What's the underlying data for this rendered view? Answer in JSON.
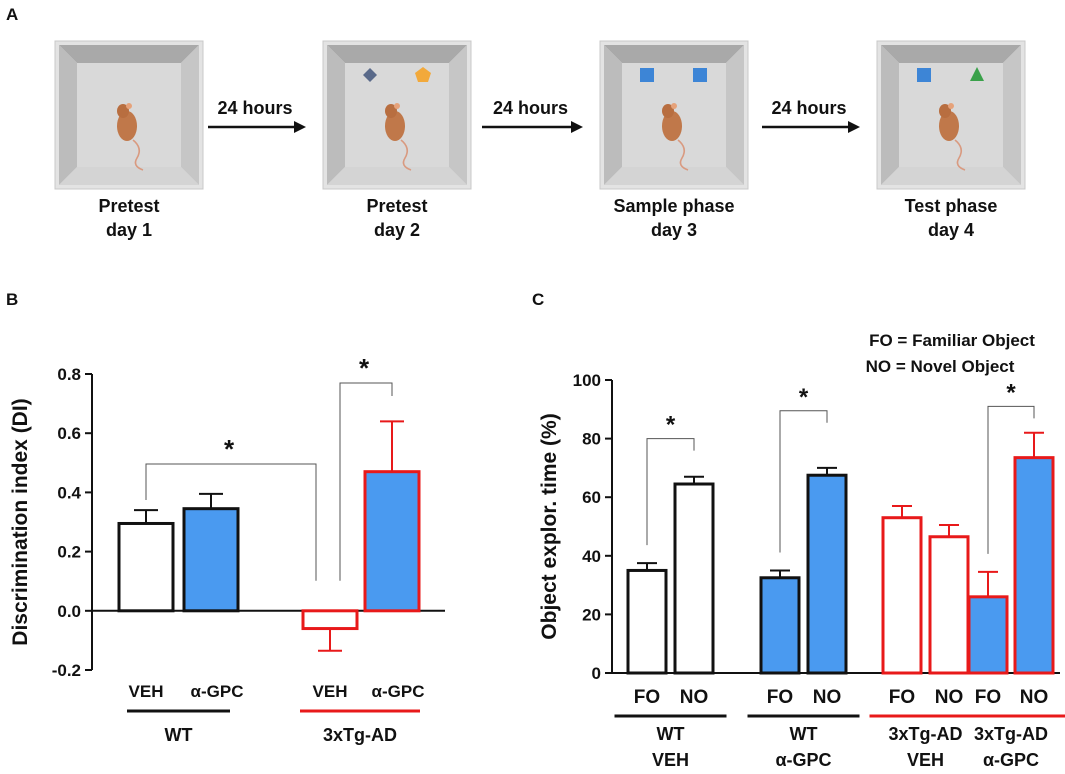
{
  "panelA": {
    "label": "A",
    "stages": [
      {
        "line1": "Pretest",
        "line2": "day 1",
        "objects": []
      },
      {
        "line1": "Pretest",
        "line2": "day 2",
        "objects": [
          "diamond-gray",
          "pentagon-orange"
        ]
      },
      {
        "line1": "Sample phase",
        "line2": "day 3",
        "objects": [
          "square-blue",
          "square-blue"
        ]
      },
      {
        "line1": "Test phase",
        "line2": "day 4",
        "objects": [
          "square-blue",
          "triangle-green"
        ]
      }
    ],
    "arrows": [
      "24 hours",
      "24 hours",
      "24 hours"
    ],
    "colors": {
      "arena_outer": "#d6d6d6",
      "arena_wall": "#bdbdbd",
      "arena_floor": "#d9d9d9",
      "mouse": "#c0784a",
      "blue": "#3d85d6",
      "orange": "#f2a93b",
      "green": "#3aa14a",
      "gray": "#5a6a8a"
    }
  },
  "chart_data": [
    {
      "panel": "B",
      "type": "bar",
      "ylabel": "Discrimination index (DI)",
      "ylim": [
        -0.2,
        0.8
      ],
      "yticks": [
        -0.2,
        0.0,
        0.2,
        0.4,
        0.6,
        0.8
      ],
      "ytick_labels": [
        "-0.2",
        "0.0",
        "0.2",
        "0.4",
        "0.6",
        "0.8"
      ],
      "bars": [
        {
          "group": "WT",
          "label": "VEH",
          "value": 0.295,
          "err": 0.045,
          "style": "white-black"
        },
        {
          "group": "WT",
          "label": "α-GPC",
          "value": 0.345,
          "err": 0.05,
          "style": "blue-black"
        },
        {
          "group": "3xTg-AD",
          "label": "VEH",
          "value": -0.06,
          "err": 0.075,
          "style": "white-red"
        },
        {
          "group": "3xTg-AD",
          "label": "α-GPC",
          "value": 0.47,
          "err": 0.17,
          "style": "blue-red"
        }
      ],
      "groups": [
        {
          "name": "WT",
          "color": "#111111"
        },
        {
          "name": "3xTg-AD",
          "color": "#e8191a"
        }
      ],
      "significance": [
        {
          "from": 0,
          "to": 2,
          "label": "*"
        },
        {
          "from": 2,
          "to": 3,
          "label": "*"
        }
      ]
    },
    {
      "panel": "C",
      "type": "bar",
      "ylabel": "Object explor. time (%)",
      "ylim": [
        0,
        100
      ],
      "yticks": [
        0,
        20,
        40,
        60,
        80,
        100
      ],
      "ytick_labels": [
        "0",
        "20",
        "40",
        "60",
        "80",
        "100"
      ],
      "legend": [
        "FO = Familiar Object",
        "NO = Novel Object"
      ],
      "groups": [
        {
          "line1": "WT",
          "line2": "VEH",
          "color1": "#111111",
          "color2": "#111111",
          "bars": [
            {
              "label": "FO",
              "value": 35,
              "err": 2.5,
              "style": "white-black"
            },
            {
              "label": "NO",
              "value": 64.5,
              "err": 2.5,
              "style": "white-black"
            }
          ],
          "sig": "*"
        },
        {
          "line1": "WT",
          "line2": "α-GPC",
          "color1": "#111111",
          "color2": "#111111",
          "bars": [
            {
              "label": "FO",
              "value": 32.5,
              "err": 2.5,
              "style": "blue-black"
            },
            {
              "label": "NO",
              "value": 67.5,
              "err": 2.5,
              "style": "blue-black"
            }
          ],
          "sig": "*"
        },
        {
          "line1": "3xTg-AD",
          "line2": "VEH",
          "color1": "#e8191a",
          "color2": "#111111",
          "bars": [
            {
              "label": "FO",
              "value": 53,
              "err": 4,
              "style": "white-red"
            },
            {
              "label": "NO",
              "value": 46.5,
              "err": 4,
              "style": "white-red"
            }
          ],
          "sig": ""
        },
        {
          "line1": "3xTg-AD",
          "line2": "α-GPC",
          "color1": "#e8191a",
          "color2": "#111111",
          "bars": [
            {
              "label": "FO",
              "value": 26,
              "err": 8.5,
              "style": "blue-red"
            },
            {
              "label": "NO",
              "value": 73.5,
              "err": 8.5,
              "style": "blue-red"
            }
          ],
          "sig": "*"
        }
      ]
    }
  ],
  "panel_labels": {
    "B": "B",
    "C": "C"
  },
  "colors": {
    "black": "#111111",
    "red": "#e8191a",
    "blue": "#4a9af0"
  }
}
